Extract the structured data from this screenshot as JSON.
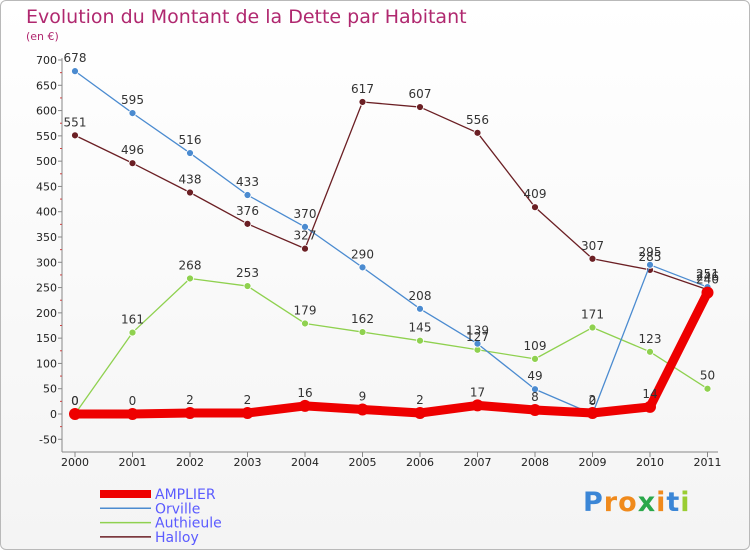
{
  "chart_data": {
    "type": "line",
    "title": "Evolution du Montant de la Dette par Habitant",
    "subtitle": "(en €)",
    "x": [
      "2000",
      "2001",
      "2002",
      "2003",
      "2004",
      "2005",
      "2006",
      "2007",
      "2008",
      "2009",
      "2010",
      "2011"
    ],
    "ylim": [
      -50,
      700
    ],
    "yticks": [
      -50,
      0,
      50,
      100,
      150,
      200,
      250,
      300,
      350,
      400,
      450,
      500,
      550,
      600,
      650,
      700
    ],
    "grid": false,
    "legend_position": "bottom-left",
    "series": [
      {
        "name": "Halloy",
        "color": "#6b1f24",
        "values": [
          551,
          496,
          438,
          376,
          327,
          617,
          607,
          556,
          409,
          307,
          285,
          246
        ]
      },
      {
        "name": "Authieule",
        "color": "#8fd14f",
        "values": [
          0,
          161,
          268,
          253,
          179,
          162,
          145,
          127,
          109,
          171,
          123,
          50
        ]
      },
      {
        "name": "Orville",
        "color": "#4b8bd0",
        "values": [
          678,
          595,
          516,
          433,
          370,
          290,
          208,
          139,
          49,
          0,
          295,
          251
        ]
      },
      {
        "name": "AMPLIER",
        "color": "#ee0000",
        "values": [
          0,
          0,
          2,
          2,
          16,
          9,
          2,
          17,
          8,
          2,
          14,
          240
        ]
      }
    ]
  },
  "legend": {
    "items": [
      {
        "name": "AMPLIER",
        "color": "#ee0000"
      },
      {
        "name": "Orville",
        "color": "#4b8bd0"
      },
      {
        "name": "Authieule",
        "color": "#8fd14f"
      },
      {
        "name": "Halloy",
        "color": "#6b1f24"
      }
    ]
  },
  "logo": {
    "letters": [
      "P",
      "r",
      "o",
      "x",
      "i",
      "t",
      "i"
    ],
    "colors": [
      "#3b86d6",
      "#f08a1c",
      "#f08a1c",
      "#2aa84a",
      "#f08a1c",
      "#3b86d6",
      "#9acd32"
    ]
  }
}
